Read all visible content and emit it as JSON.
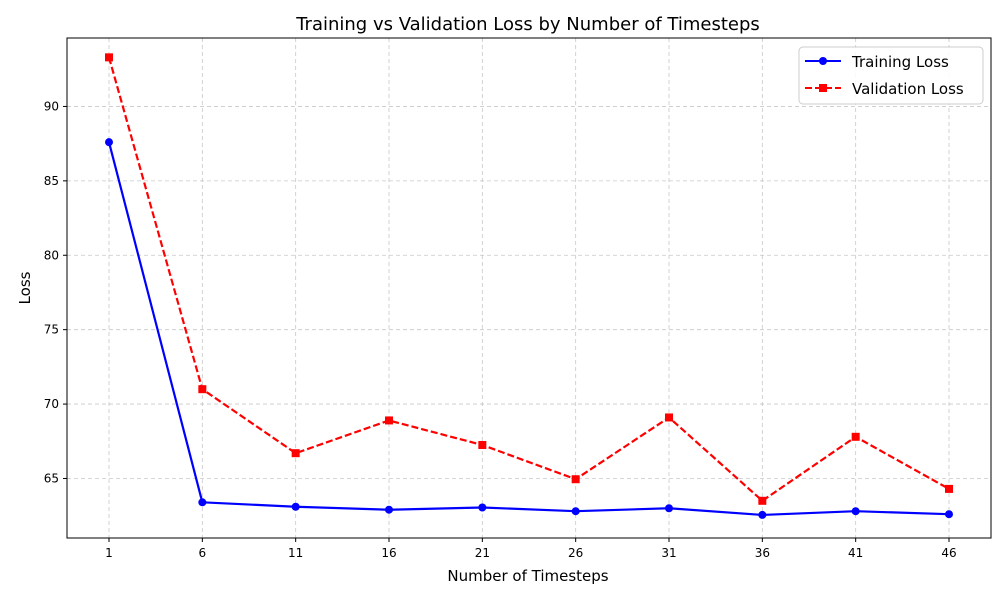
{
  "chart_data": {
    "type": "line",
    "title": "Training vs Validation Loss by Number of Timesteps",
    "xlabel": "Number of Timesteps",
    "ylabel": "Loss",
    "x": [
      1,
      6,
      11,
      16,
      21,
      26,
      31,
      36,
      41,
      46
    ],
    "x_ticks": [
      "1",
      "6",
      "11",
      "16",
      "21",
      "26",
      "31",
      "36",
      "41",
      "46"
    ],
    "y_ticks": [
      "65",
      "70",
      "75",
      "80",
      "85",
      "90"
    ],
    "xlim": [
      -1.25,
      48.25
    ],
    "ylim": [
      61.0,
      94.6
    ],
    "grid": true,
    "legend_position": "top-right",
    "series": [
      {
        "name": "Training Loss",
        "color": "#0000ff",
        "marker": "circle",
        "line_style": "solid",
        "values": [
          87.6,
          63.4,
          63.1,
          62.9,
          63.05,
          62.8,
          63.0,
          62.55,
          62.8,
          62.6
        ]
      },
      {
        "name": "Validation Loss",
        "color": "#ff0000",
        "marker": "square",
        "line_style": "dashed",
        "values": [
          93.3,
          71.0,
          66.7,
          68.9,
          67.25,
          64.95,
          69.1,
          63.5,
          67.8,
          64.3
        ]
      }
    ]
  }
}
